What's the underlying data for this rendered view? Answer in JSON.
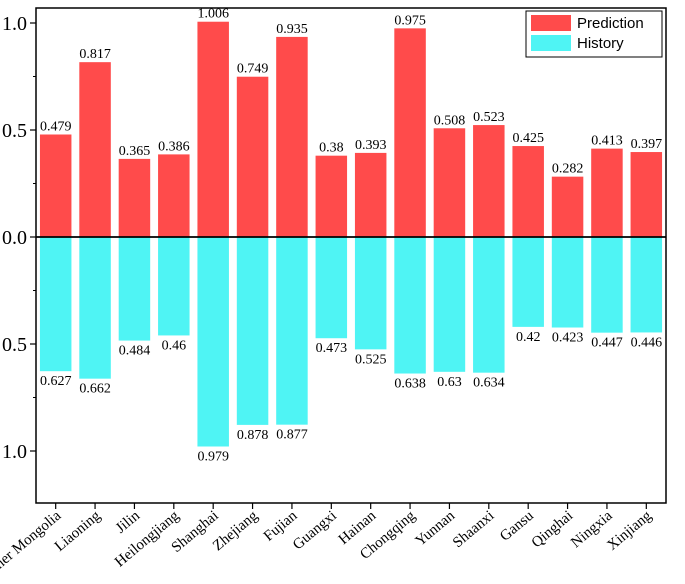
{
  "chart_data": {
    "type": "bar",
    "title": "",
    "xlabel": "",
    "ylabel": "",
    "ylim": [
      -1.25,
      1.05
    ],
    "y_ticks": [
      {
        "value": 1.0,
        "label": "1.0"
      },
      {
        "value": 0.5,
        "label": "0.5"
      },
      {
        "value": 0.0,
        "label": "0.0"
      },
      {
        "value": -0.5,
        "label": "0.5"
      },
      {
        "value": -1.0,
        "label": "1.0"
      }
    ],
    "categories": [
      "Inner Mongolia",
      "Liaoning",
      "Jilin",
      "Heilongjiang",
      "Shanghai",
      "Zhejiang",
      "Fujian",
      "Guangxi",
      "Hainan",
      "Chongqing",
      "Yunnan",
      "Shaanxi",
      "Gansu",
      "Qinghai",
      "Ningxia",
      "Xinjiang"
    ],
    "series": [
      {
        "name": "Prediction",
        "color": "#ff4b4b",
        "direction": "up",
        "values": [
          0.479,
          0.817,
          0.365,
          0.386,
          1.006,
          0.749,
          0.935,
          0.38,
          0.393,
          0.975,
          0.508,
          0.523,
          0.425,
          0.282,
          0.413,
          0.397
        ],
        "value_labels": [
          "0.479",
          "0.817",
          "0.365",
          "0.386",
          "1.006",
          "0.749",
          "0.935",
          "0.38",
          "0.393",
          "0.975",
          "0.508",
          "0.523",
          "0.425",
          "0.282",
          "0.413",
          "0.397"
        ]
      },
      {
        "name": "History",
        "color": "#4ff4f4",
        "direction": "down",
        "values": [
          0.627,
          0.662,
          0.484,
          0.46,
          0.979,
          0.878,
          0.877,
          0.473,
          0.525,
          0.638,
          0.63,
          0.634,
          0.42,
          0.423,
          0.447,
          0.446
        ],
        "value_labels": [
          "0.627",
          "0.662",
          "0.484",
          "0.46",
          "0.979",
          "0.878",
          "0.877",
          "0.473",
          "0.525",
          "0.638",
          "0.63",
          "0.634",
          "0.42",
          "0.423",
          "0.447",
          "0.446"
        ]
      }
    ],
    "legend": {
      "position": "top-right",
      "entries": [
        "Prediction",
        "History"
      ]
    },
    "grid": false
  }
}
